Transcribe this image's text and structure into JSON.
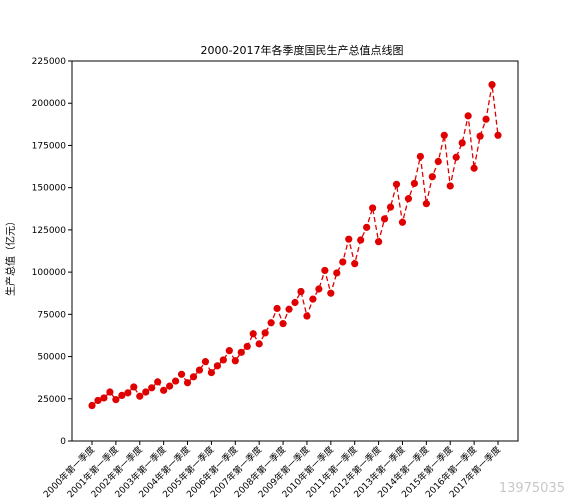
{
  "chart_data": {
    "type": "line",
    "title": "2000-2017年各季度国民生产总值点线图",
    "xlabel": "",
    "ylabel": "生产总值（亿元）",
    "ylim": [
      0,
      225000
    ],
    "yticks": [
      0,
      25000,
      50000,
      75000,
      100000,
      125000,
      150000,
      175000,
      200000,
      225000
    ],
    "xtick_labels": [
      "2000年第一季度",
      "2001年第一季度",
      "2002年第一季度",
      "2003年第一季度",
      "2004年第一季度",
      "2005年第一季度",
      "2006年第一季度",
      "2007年第一季度",
      "2008年第一季度",
      "2009年第一季度",
      "2010年第一季度",
      "2011年第一季度",
      "2012年第一季度",
      "2013年第一季度",
      "2014年第一季度",
      "2015年第一季度",
      "2016年第一季度",
      "2017年第一季度"
    ],
    "grid": false,
    "line_style": "dashed",
    "marker": "circle",
    "color": "#e00000",
    "series": [
      {
        "values": [
          21000,
          24000,
          25500,
          29000,
          24500,
          27000,
          28500,
          32000,
          26500,
          29000,
          31500,
          35000,
          30000,
          32500,
          35500,
          39500,
          34500,
          38000,
          42000,
          47000,
          40500,
          44500,
          48000,
          53500,
          47500,
          52500,
          56000,
          63500,
          57500,
          64000,
          70000,
          78500,
          69500,
          78000,
          82000,
          88500,
          74000,
          84000,
          90000,
          101000,
          87500,
          99500,
          106000,
          119500,
          105000,
          119000,
          126500,
          138000,
          118000,
          131500,
          138500,
          152000,
          129500,
          143500,
          152500,
          168500,
          140500,
          156500,
          165500,
          181000,
          151000,
          168000,
          176500,
          192500,
          161500,
          180500,
          190500,
          211000,
          181000
        ]
      }
    ]
  },
  "watermark": "13975035"
}
